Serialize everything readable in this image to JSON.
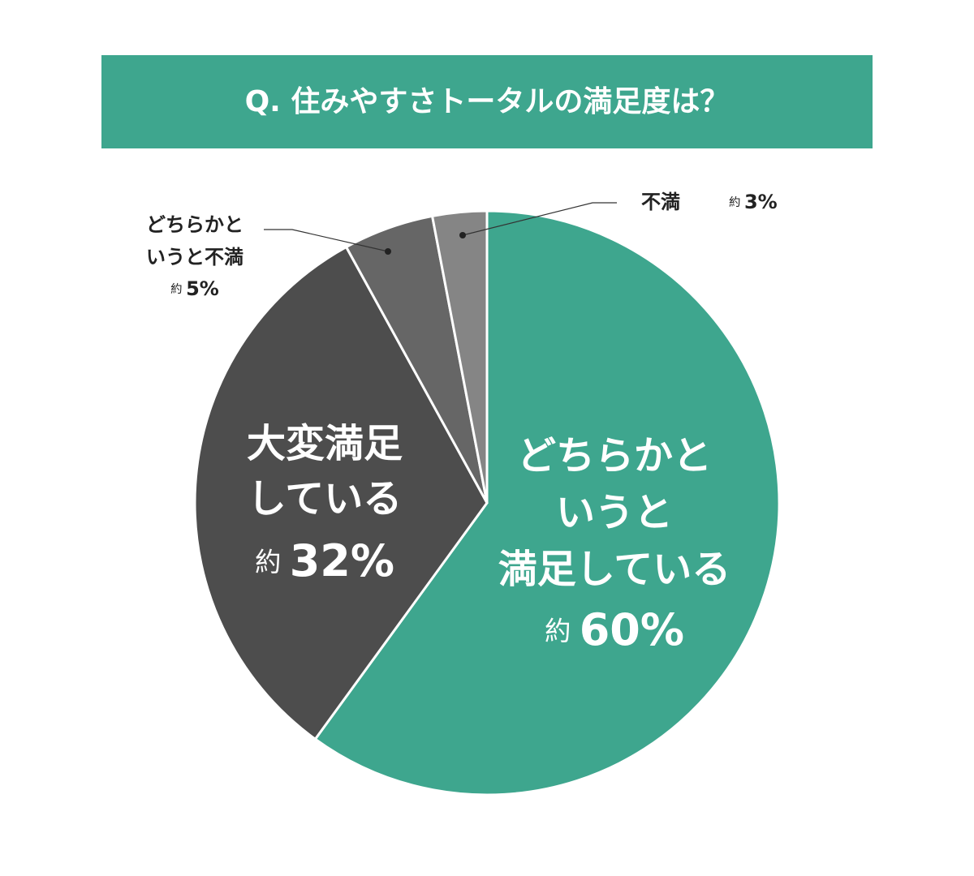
{
  "chart_data": {
    "type": "pie",
    "title": "Q. 住みやすさトータルの満足度は？",
    "categories": [
      "どちらかと\nいうと\n満足している",
      "大変満足\nしている",
      "どちらかと\nいうと不満",
      "不満"
    ],
    "values": [
      60,
      32,
      5,
      3
    ],
    "value_labels": [
      "約60%",
      "約32%",
      "約5%",
      "約3%"
    ],
    "colors": [
      "#3ea68e",
      "#4d4d4d",
      "#666666",
      "#858585"
    ]
  }
}
